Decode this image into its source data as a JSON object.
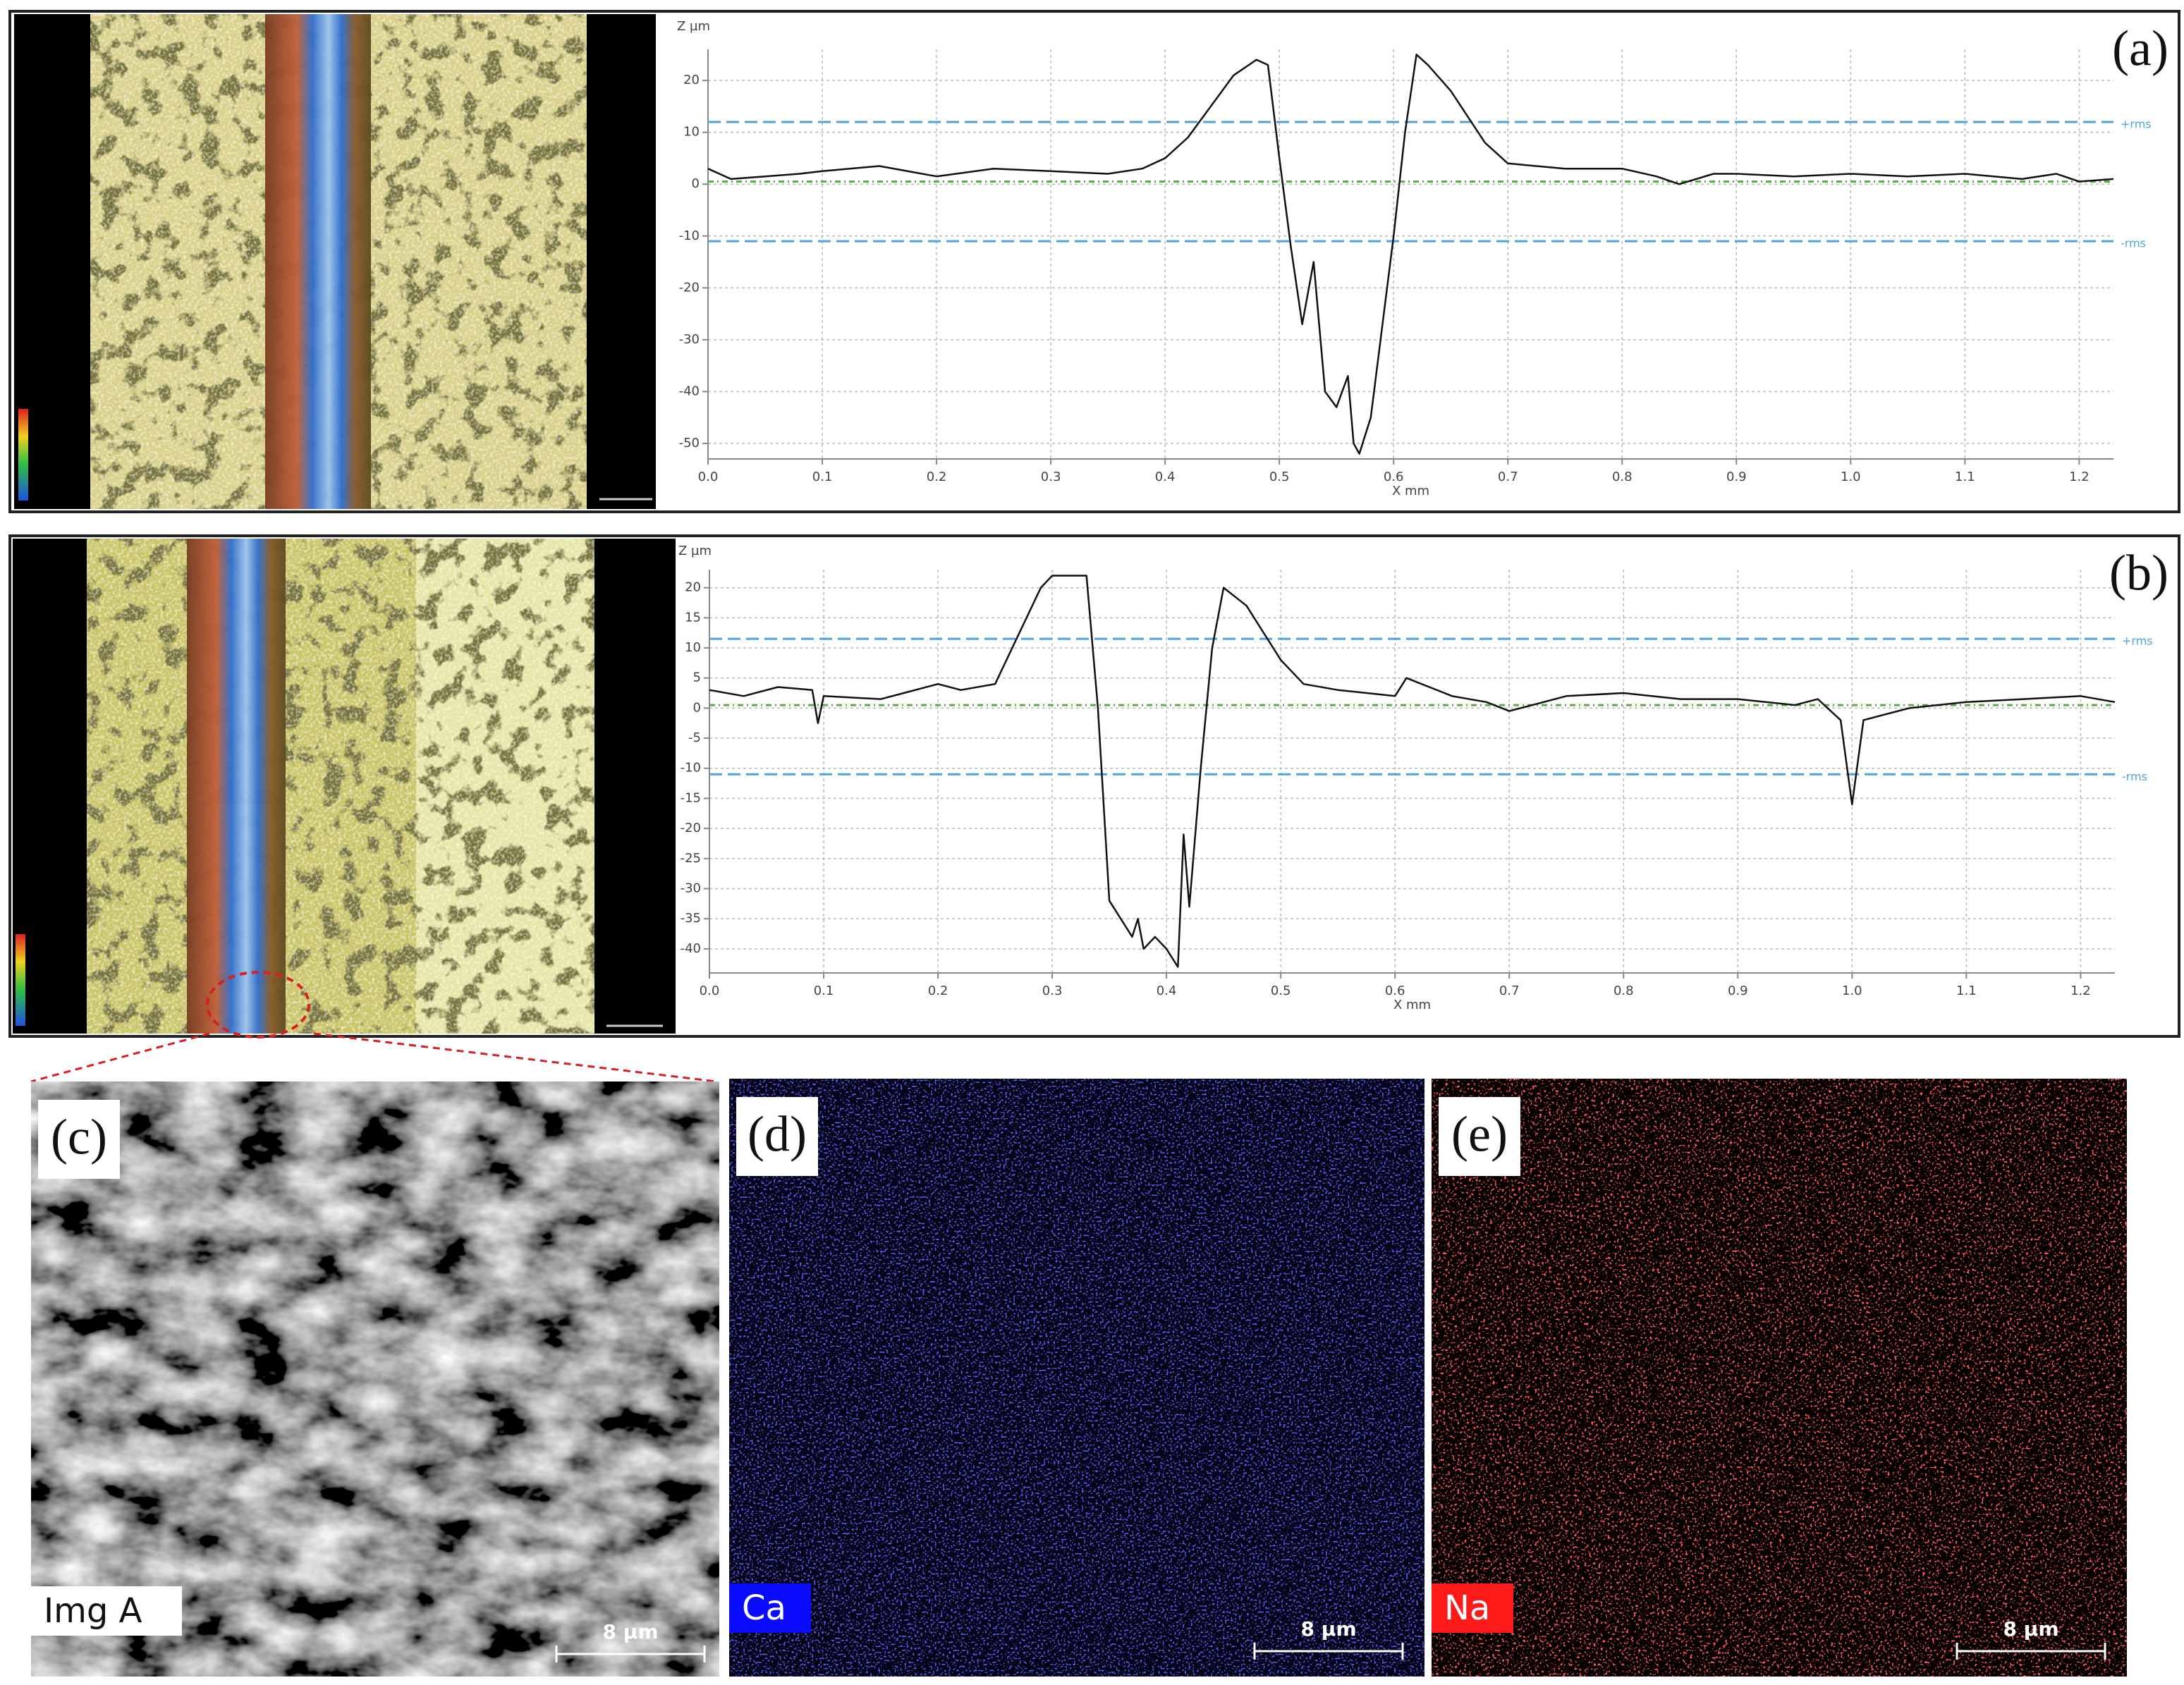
{
  "chart_data": [
    {
      "type": "line",
      "label": "(a)",
      "y_label": "Z µm",
      "x_label": "X mm",
      "color": "#111111",
      "grid": true,
      "xlim": [
        0,
        1.23
      ],
      "ylim": [
        -53,
        26
      ],
      "xticks": [
        {
          "value": 0,
          "label": "0.0"
        },
        0.1,
        0.2,
        0.3,
        0.4,
        0.5,
        0.6,
        0.7,
        0.8,
        0.9,
        {
          "value": 1,
          "label": "1.0"
        },
        1.1,
        1.2
      ],
      "yticks": [
        -50,
        -40,
        -30,
        -20,
        -10,
        0,
        10,
        20
      ],
      "reference_lines": [
        {
          "label": "+rms",
          "value": 12,
          "color": "#4fa3d9"
        },
        {
          "label": "-rms",
          "value": -11,
          "color": "#4fa3d9"
        },
        {
          "value": 0.5,
          "color": "#5cae4a"
        }
      ],
      "x": [
        0,
        0.02,
        0.05,
        0.08,
        0.1,
        0.15,
        0.2,
        0.25,
        0.3,
        0.35,
        0.38,
        0.4,
        0.42,
        0.44,
        0.46,
        0.48,
        0.49,
        0.5,
        0.51,
        0.52,
        0.53,
        0.54,
        0.55,
        0.56,
        0.565,
        0.57,
        0.58,
        0.6,
        0.61,
        0.62,
        0.63,
        0.65,
        0.68,
        0.7,
        0.75,
        0.8,
        0.83,
        0.85,
        0.88,
        0.9,
        0.95,
        1.0,
        1.05,
        1.1,
        1.15,
        1.18,
        1.2,
        1.23
      ],
      "values": [
        3,
        1,
        1.5,
        2,
        2.5,
        3.5,
        1.5,
        3,
        2.5,
        2,
        3,
        5,
        9,
        15,
        21,
        24,
        23,
        5,
        -12,
        -27,
        -15,
        -40,
        -43,
        -37,
        -50,
        -52,
        -45,
        -10,
        10,
        25,
        23,
        18,
        8,
        4,
        3,
        3,
        1.5,
        0,
        2,
        2,
        1.5,
        2,
        1.5,
        2,
        1,
        2,
        0.5,
        1
      ]
    },
    {
      "type": "line",
      "label": "(b)",
      "y_label": "Z µm",
      "x_label": "X mm",
      "color": "#111111",
      "grid": true,
      "xlim": [
        0,
        1.23
      ],
      "ylim": [
        -44,
        23
      ],
      "xticks": [
        {
          "value": 0,
          "label": "0.0"
        },
        0.1,
        0.2,
        0.3,
        0.4,
        0.5,
        0.6,
        0.7,
        0.8,
        0.9,
        {
          "value": 1,
          "label": "1.0"
        },
        1.1,
        1.2
      ],
      "yticks": [
        -40,
        -35,
        -30,
        -25,
        -20,
        -15,
        -10,
        -5,
        0,
        5,
        10,
        15,
        20
      ],
      "reference_lines": [
        {
          "label": "+rms",
          "value": 11.5,
          "color": "#4fa3d9"
        },
        {
          "label": "-rms",
          "value": -11,
          "color": "#4fa3d9"
        },
        {
          "value": 0.5,
          "color": "#5cae4a"
        }
      ],
      "x": [
        0,
        0.03,
        0.06,
        0.09,
        0.095,
        0.1,
        0.15,
        0.2,
        0.22,
        0.25,
        0.27,
        0.29,
        0.3,
        0.33,
        0.34,
        0.35,
        0.37,
        0.375,
        0.38,
        0.39,
        0.4,
        0.41,
        0.415,
        0.42,
        0.43,
        0.44,
        0.45,
        0.47,
        0.5,
        0.52,
        0.55,
        0.6,
        0.61,
        0.65,
        0.68,
        0.7,
        0.75,
        0.8,
        0.85,
        0.9,
        0.95,
        0.97,
        0.99,
        1.0,
        1.01,
        1.05,
        1.1,
        1.15,
        1.2,
        1.23
      ],
      "values": [
        3,
        2,
        3.5,
        3,
        -2.5,
        2,
        1.5,
        4,
        3,
        4,
        12,
        20,
        22,
        22,
        0,
        -32,
        -38,
        -35,
        -40,
        -38,
        -40,
        -43,
        -21,
        -33,
        -10,
        10,
        20,
        17,
        8,
        4,
        3,
        2,
        5,
        2,
        1,
        -0.5,
        2,
        2.5,
        1.5,
        1.5,
        0.5,
        1.5,
        -2,
        -16,
        -2,
        0,
        1,
        1.5,
        2,
        1
      ]
    }
  ],
  "panels": [
    {
      "label": "(c)",
      "tag": "Img A",
      "scale_bar": "8 µm"
    },
    {
      "label": "(d)",
      "tag": "Ca",
      "scale_bar": "8 µm"
    },
    {
      "label": "(e)",
      "tag": "Na",
      "scale_bar": "8 µm"
    }
  ]
}
